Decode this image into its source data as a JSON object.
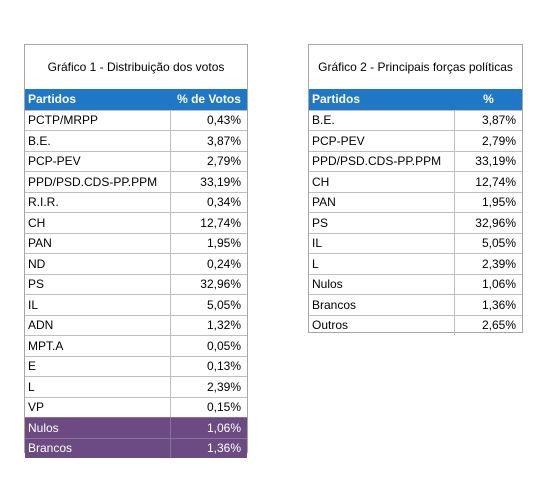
{
  "table1": {
    "caption": "Gráfico 1 - Distribuição dos votos",
    "header": {
      "col1": "Partidos",
      "col2": "% de Votos"
    },
    "rows": [
      {
        "party": "PCTP/MRPP",
        "pct": "0,43%"
      },
      {
        "party": "B.E.",
        "pct": "3,87%"
      },
      {
        "party": "PCP-PEV",
        "pct": "2,79%"
      },
      {
        "party": "PPD/PSD.CDS-PP.PPM",
        "pct": "33,19%"
      },
      {
        "party": "R.I.R.",
        "pct": "0,34%"
      },
      {
        "party": "CH",
        "pct": "12,74%"
      },
      {
        "party": "PAN",
        "pct": "1,95%"
      },
      {
        "party": "ND",
        "pct": "0,24%"
      },
      {
        "party": "PS",
        "pct": "32,96%"
      },
      {
        "party": "IL",
        "pct": "5,05%"
      },
      {
        "party": "ADN",
        "pct": "1,32%"
      },
      {
        "party": "MPT.A",
        "pct": "0,05%"
      },
      {
        "party": "E",
        "pct": "0,13%"
      },
      {
        "party": "L",
        "pct": "2,39%"
      },
      {
        "party": "VP",
        "pct": "0,15%"
      },
      {
        "party": "Nulos",
        "pct": "1,06%"
      },
      {
        "party": "Brancos",
        "pct": "1,36%"
      }
    ]
  },
  "table2": {
    "caption": "Gráfico 2 - Principais forças políticas",
    "header": {
      "col1": "Partidos",
      "col2": "%"
    },
    "rows": [
      {
        "party": "B.E.",
        "pct": "3,87%"
      },
      {
        "party": "PCP-PEV",
        "pct": "2,79%"
      },
      {
        "party": "PPD/PSD.CDS-PP.PPM",
        "pct": "33,19%"
      },
      {
        "party": "CH",
        "pct": "12,74%"
      },
      {
        "party": "PAN",
        "pct": "1,95%"
      },
      {
        "party": "PS",
        "pct": "32,96%"
      },
      {
        "party": "IL",
        "pct": "5,05%"
      },
      {
        "party": "L",
        "pct": "2,39%"
      },
      {
        "party": "Nulos",
        "pct": "1,06%"
      },
      {
        "party": "Brancos",
        "pct": "1,36%"
      },
      {
        "party": "Outros",
        "pct": "2,65%"
      }
    ]
  },
  "colors": {
    "header_blue": "#1f77c6",
    "highlight_purple": "#6b4b82"
  }
}
